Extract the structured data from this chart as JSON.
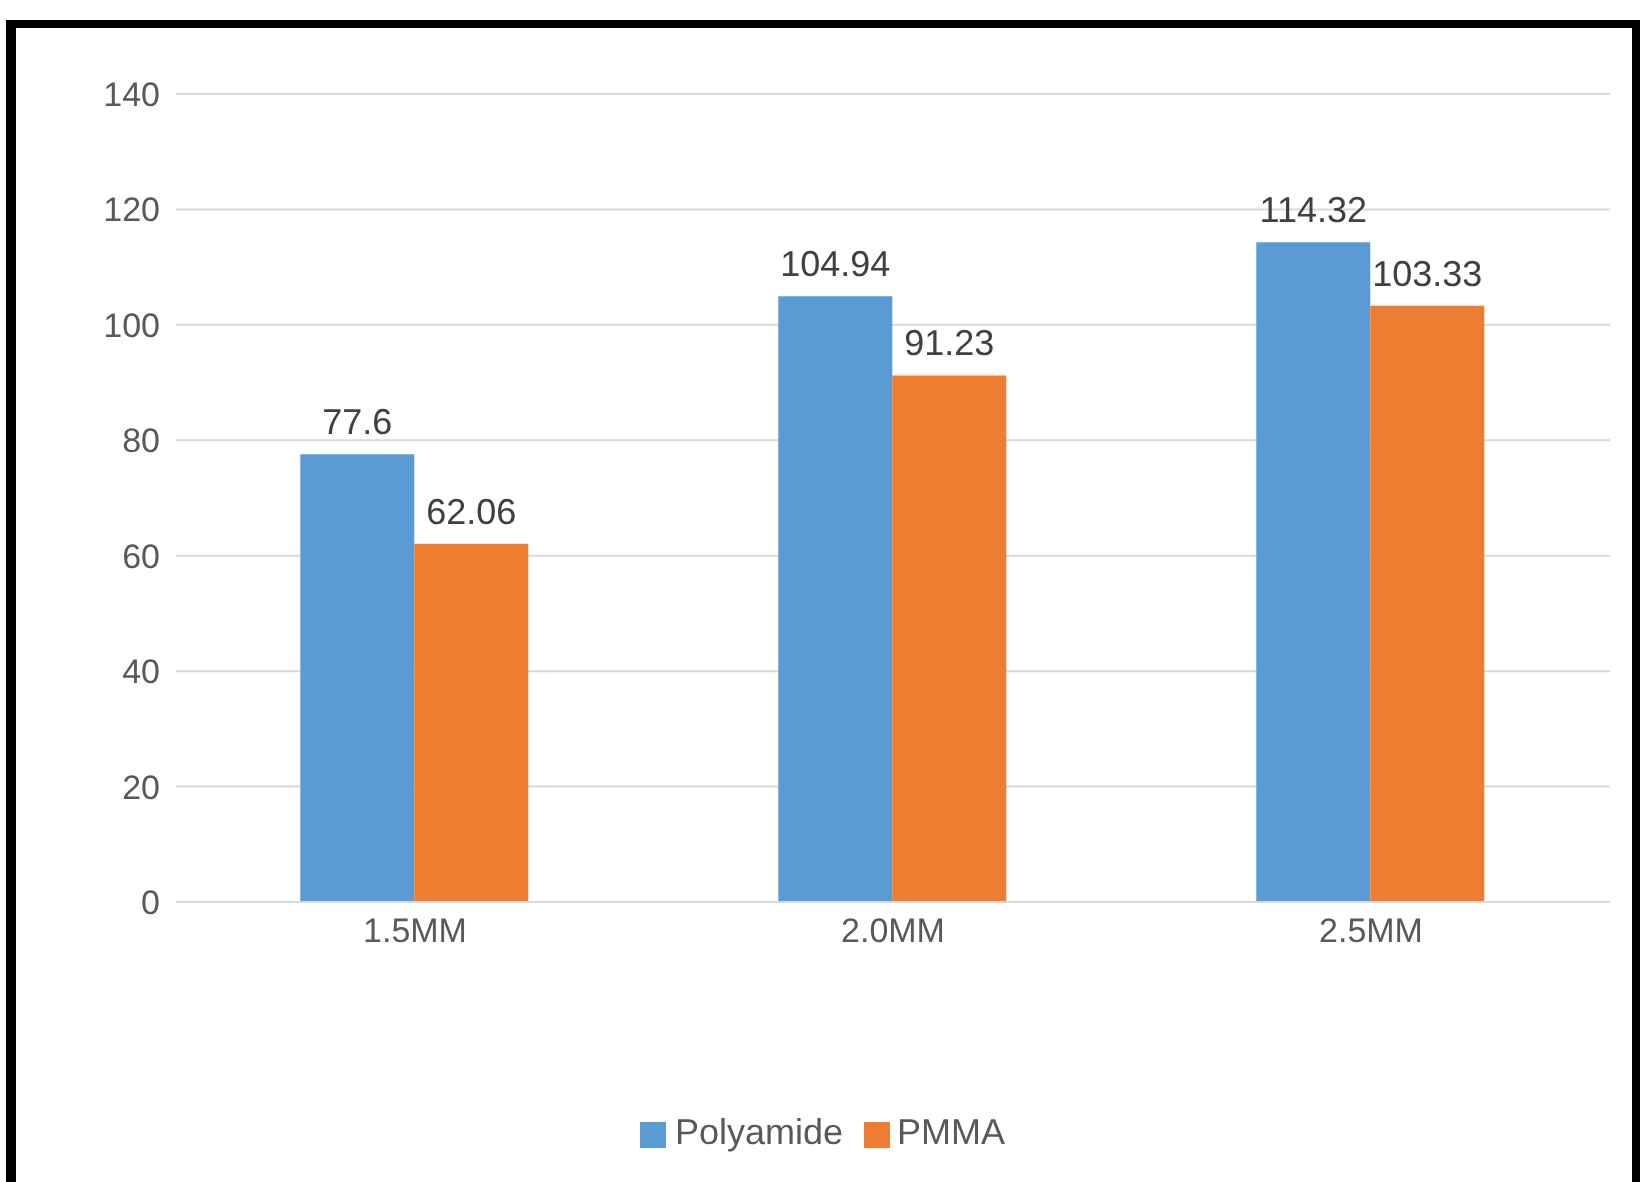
{
  "chart_data": {
    "type": "bar",
    "categories": [
      "1.5MM",
      "2.0MM",
      "2.5MM"
    ],
    "series": [
      {
        "name": "Polyamide",
        "color": "#5b9bd5",
        "values": [
          77.6,
          104.94,
          114.32
        ]
      },
      {
        "name": "PMMA",
        "color": "#ed7d31",
        "values": [
          62.06,
          91.23,
          103.33
        ]
      }
    ],
    "ylim": [
      0,
      140
    ],
    "yticks": [
      0,
      20,
      40,
      60,
      80,
      100,
      120,
      140
    ],
    "grid": "y",
    "legend": "bottom",
    "data_labels": true
  }
}
